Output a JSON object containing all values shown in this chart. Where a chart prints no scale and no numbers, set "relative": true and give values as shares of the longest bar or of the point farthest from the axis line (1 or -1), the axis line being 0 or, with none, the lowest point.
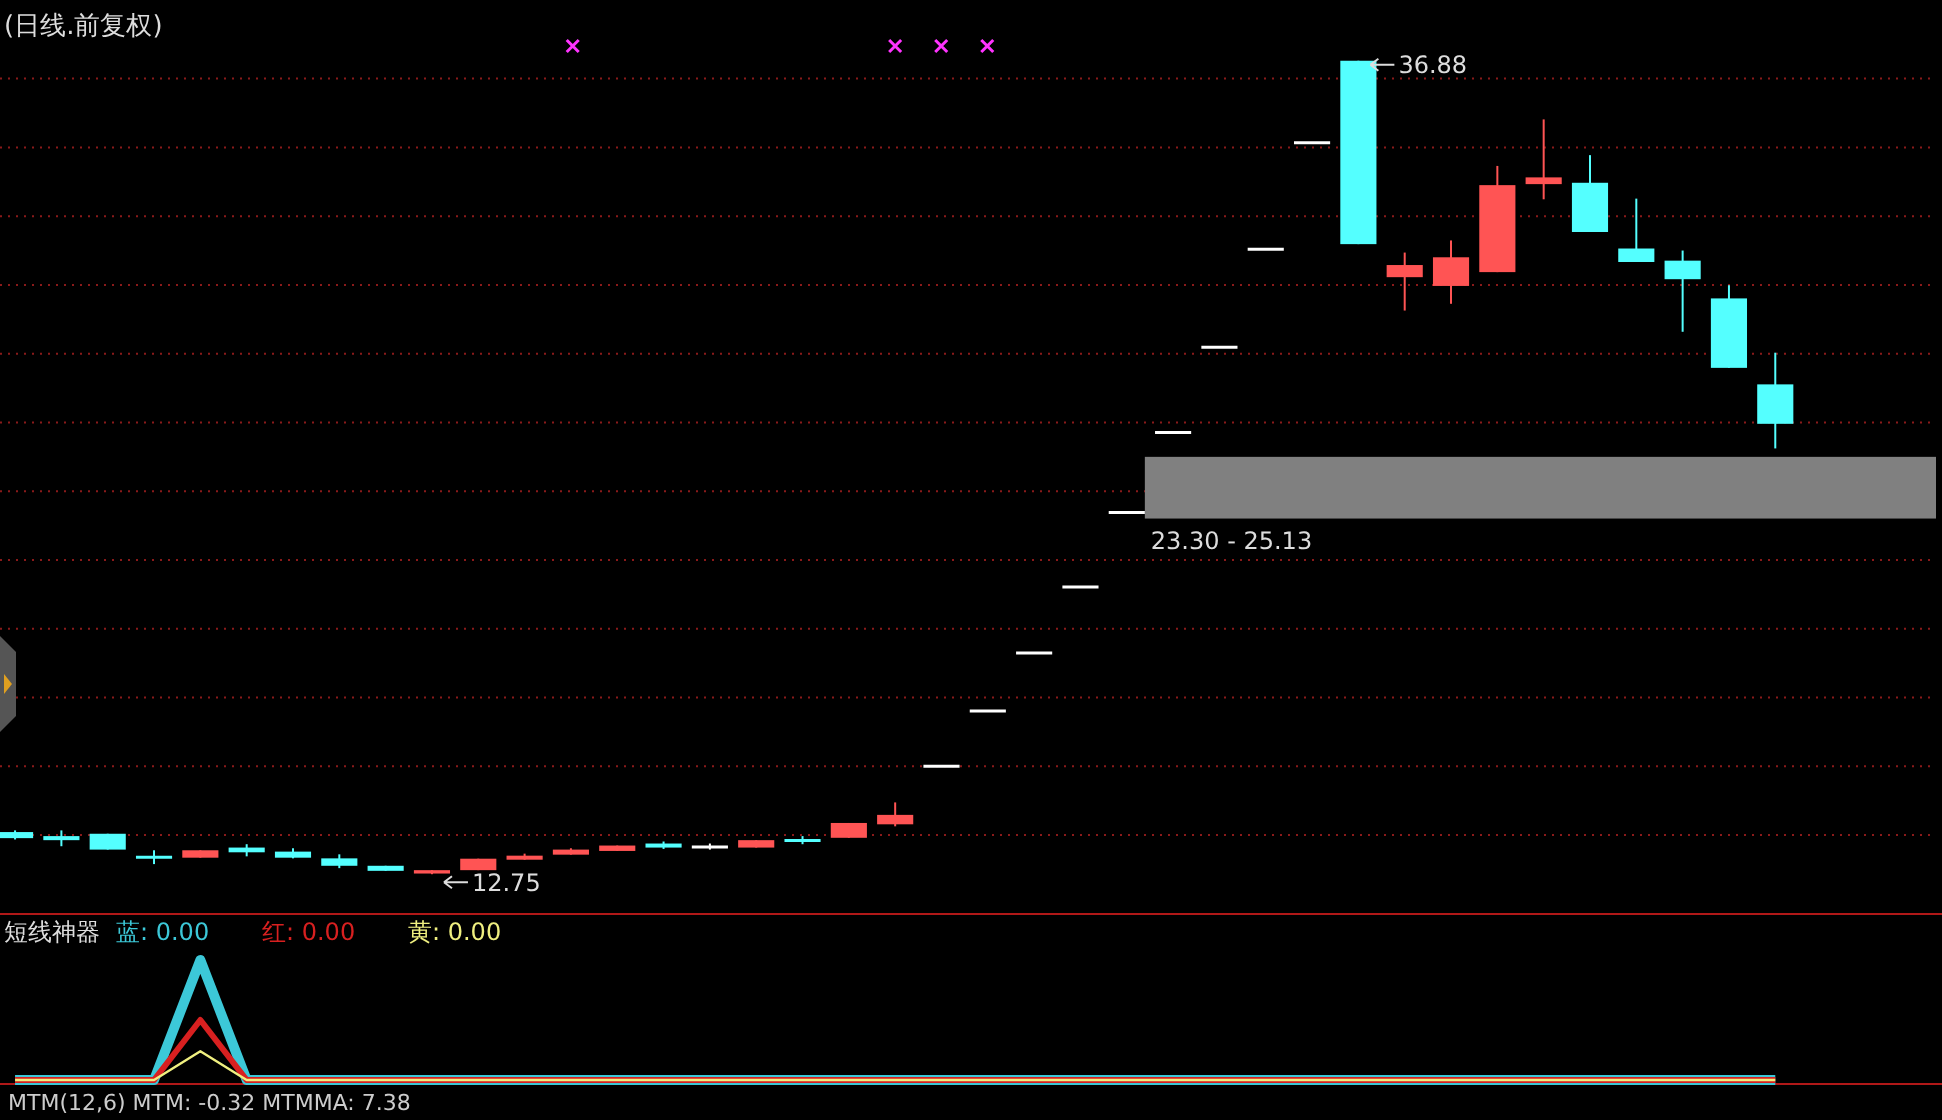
{
  "chart_data": [
    {
      "type": "candlestick",
      "title": "(日线.前复权)",
      "categories": [
        null,
        null,
        null,
        null,
        null,
        null,
        null,
        null,
        null,
        null,
        null,
        null,
        null,
        null,
        null,
        null,
        null,
        null,
        null,
        null,
        null,
        null,
        null,
        null,
        null,
        null,
        null,
        null,
        null,
        null,
        null,
        null,
        null,
        null,
        null,
        null,
        null,
        null,
        null
      ],
      "ohlc": [
        [
          14.0,
          14.05,
          13.78,
          13.82
        ],
        [
          13.88,
          14.05,
          13.58,
          13.76
        ],
        [
          13.95,
          13.95,
          13.48,
          13.48
        ],
        [
          13.27,
          13.46,
          13.05,
          13.24
        ],
        [
          13.24,
          13.46,
          13.24,
          13.46
        ],
        [
          13.54,
          13.64,
          13.28,
          13.4
        ],
        [
          13.42,
          13.52,
          13.22,
          13.24
        ],
        [
          13.22,
          13.34,
          12.93,
          13.0
        ],
        [
          13.0,
          13.0,
          12.85,
          12.85
        ],
        [
          12.77,
          12.87,
          12.75,
          12.87
        ],
        [
          12.87,
          13.21,
          12.87,
          13.21
        ],
        [
          13.18,
          13.36,
          13.18,
          13.3
        ],
        [
          13.33,
          13.52,
          13.33,
          13.48
        ],
        [
          13.44,
          13.6,
          13.44,
          13.6
        ],
        [
          13.66,
          13.72,
          13.5,
          13.54
        ],
        [
          13.56,
          13.66,
          13.48,
          13.56
        ],
        [
          13.54,
          13.76,
          13.54,
          13.76
        ],
        [
          13.76,
          13.88,
          13.64,
          13.74
        ],
        [
          13.83,
          14.27,
          13.83,
          14.27
        ],
        [
          14.23,
          14.88,
          14.17,
          14.51
        ],
        [
          15.95,
          15.95,
          15.95,
          15.95
        ],
        [
          17.59,
          17.59,
          17.59,
          17.59
        ],
        [
          19.31,
          19.31,
          19.31,
          19.31
        ],
        [
          21.27,
          21.27,
          21.27,
          21.27
        ],
        [
          23.48,
          23.48,
          23.48,
          23.48
        ],
        [
          25.85,
          25.85,
          25.85,
          25.85
        ],
        [
          28.38,
          28.38,
          28.38,
          28.38
        ],
        [
          31.29,
          31.29,
          31.29,
          31.29
        ],
        [
          34.45,
          34.45,
          34.45,
          34.45
        ],
        [
          36.88,
          36.88,
          31.44,
          31.44
        ],
        [
          30.46,
          31.19,
          29.47,
          30.82
        ],
        [
          30.2,
          31.55,
          29.67,
          31.05
        ],
        [
          30.61,
          33.76,
          30.61,
          33.19
        ],
        [
          33.22,
          35.14,
          32.77,
          33.42
        ],
        [
          33.26,
          34.08,
          31.8,
          31.8
        ],
        [
          31.31,
          32.79,
          30.91,
          30.91
        ],
        [
          30.95,
          31.25,
          28.84,
          30.4
        ],
        [
          29.83,
          30.22,
          27.77,
          27.77
        ],
        [
          27.28,
          28.22,
          25.38,
          26.11
        ]
      ],
      "yticks": [
        {
          "value": 13.91,
          "label": null
        },
        {
          "value": 15.95,
          "label": null
        },
        {
          "value": 17.99,
          "label": null
        },
        {
          "value": 20.03,
          "label": null
        },
        {
          "value": 22.07,
          "label": null
        },
        {
          "value": 24.11,
          "label": null
        },
        {
          "value": 26.15,
          "label": null
        },
        {
          "value": 28.19,
          "label": null
        },
        {
          "value": 30.23,
          "label": null
        },
        {
          "value": 32.27,
          "label": null
        },
        {
          "value": 34.31,
          "label": null
        },
        {
          "value": 36.35,
          "label": null
        }
      ],
      "grid": true,
      "bands": [
        {
          "axis": "y",
          "from": 23.3,
          "to": 25.13,
          "label": "23.30 - 25.13",
          "color": "#808080"
        }
      ],
      "annotations": [
        "36.88",
        "12.75"
      ]
    },
    {
      "type": "line",
      "title": "短线神器",
      "categories": [
        null,
        null,
        null,
        null,
        null,
        null,
        null,
        null,
        null,
        null,
        null,
        null,
        null,
        null,
        null,
        null,
        null,
        null,
        null,
        null,
        null,
        null,
        null,
        null,
        null,
        null,
        null,
        null,
        null,
        null,
        null,
        null,
        null,
        null,
        null,
        null,
        null,
        null,
        null
      ],
      "relative": true,
      "series": [
        {
          "name": "蓝: 0.00",
          "color": "#3cc8d8",
          "values": [
            0,
            0,
            0,
            0,
            1,
            0,
            0,
            0,
            0,
            0,
            0,
            0,
            0,
            0,
            0,
            0,
            0,
            0,
            0,
            0,
            0,
            0,
            0,
            0,
            0,
            0,
            0,
            0,
            0,
            0,
            0,
            0,
            0,
            0,
            0,
            0,
            0,
            0,
            0
          ]
        },
        {
          "name": "红: 0.00",
          "color": "#d82020",
          "values": [
            0,
            0,
            0,
            0,
            0.5,
            0,
            0,
            0,
            0,
            0,
            0,
            0,
            0,
            0,
            0,
            0,
            0,
            0,
            0,
            0,
            0,
            0,
            0,
            0,
            0,
            0,
            0,
            0,
            0,
            0,
            0,
            0,
            0,
            0,
            0,
            0,
            0,
            0,
            0
          ]
        },
        {
          "name": "黄: 0.00",
          "color": "#f0f080",
          "values": [
            0,
            0,
            0,
            0,
            0.24,
            0,
            0,
            0,
            0,
            0,
            0,
            0,
            0,
            0,
            0,
            0,
            0,
            0,
            0,
            0,
            0,
            0,
            0,
            0,
            0,
            0,
            0,
            0,
            0,
            0,
            0,
            0,
            0,
            0,
            0,
            0,
            0,
            0,
            0
          ]
        }
      ],
      "annotations": [
        "MTM(12,6) MTM: -0.32 MTMMA: 7.38"
      ]
    }
  ]
}
